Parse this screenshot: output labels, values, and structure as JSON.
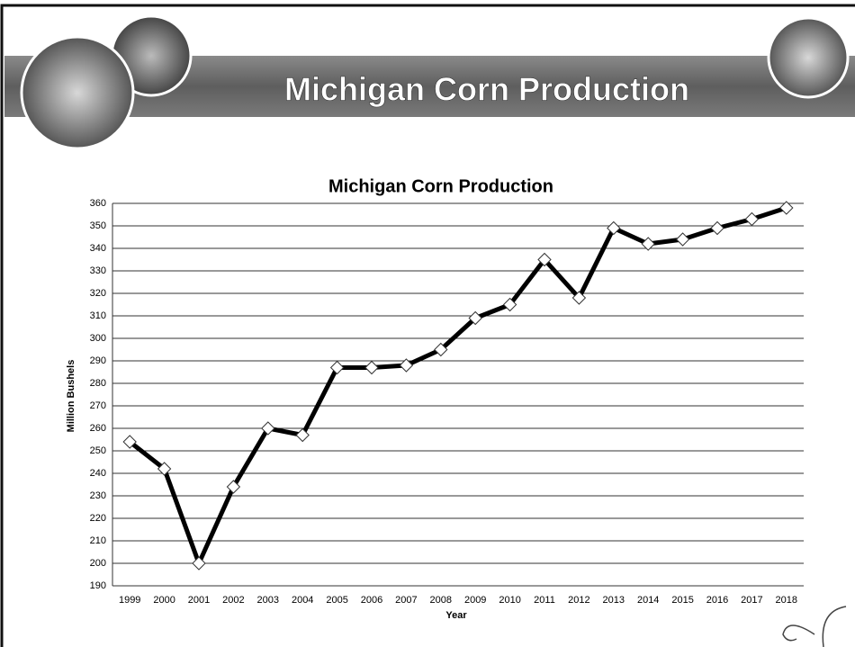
{
  "header": {
    "title": "Michigan Corn Production"
  },
  "chart_data": {
    "type": "line",
    "title": "Michigan Corn Production",
    "x_label": "Year",
    "y_label": "Million Bushels",
    "categories": [
      "1999",
      "2000",
      "2001",
      "2002",
      "2003",
      "2004",
      "2005",
      "2006",
      "2007",
      "2008",
      "2009",
      "2010",
      "2011",
      "2012",
      "2013",
      "2014",
      "2015",
      "2016",
      "2017",
      "2018"
    ],
    "values": [
      254,
      242,
      200,
      234,
      260,
      257,
      287,
      287,
      288,
      295,
      309,
      315,
      335,
      318,
      349,
      342,
      344,
      349,
      353,
      358
    ],
    "color": "#000000",
    "marker_fill": "#ffffff",
    "ylim": [
      190,
      360
    ],
    "yticks": [
      190,
      200,
      210,
      220,
      230,
      240,
      250,
      260,
      270,
      280,
      290,
      300,
      310,
      320,
      330,
      340,
      350,
      360
    ],
    "grid": true
  }
}
